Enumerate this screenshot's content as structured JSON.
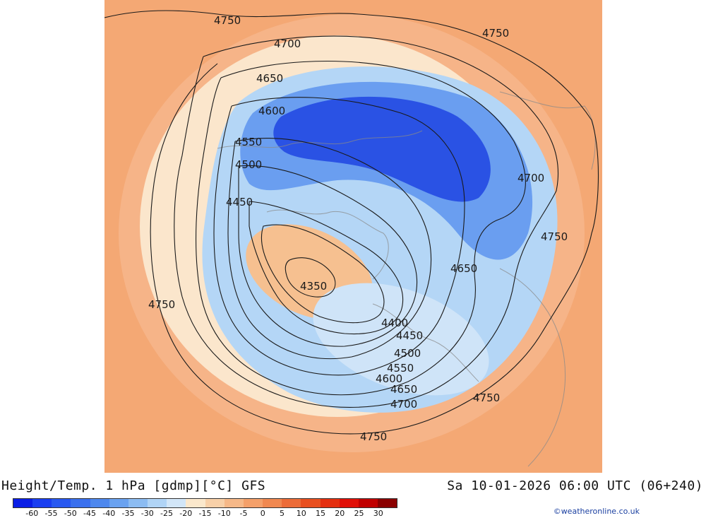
{
  "title": "Height/Temp. 1 hPa [gdmp][°C] GFS",
  "valid_time": "Sa 10-01-2026 06:00 UTC (06+240)",
  "credit": "©weatheronline.co.uk",
  "contour_labels": [
    {
      "text": "4750",
      "name": "contour-label-4750-nw"
    },
    {
      "text": "4750",
      "name": "contour-label-4750-ne"
    },
    {
      "text": "4700",
      "name": "contour-label-4700-n"
    },
    {
      "text": "4650",
      "name": "contour-label-4650-nw"
    },
    {
      "text": "4600",
      "name": "contour-label-4600-nw"
    },
    {
      "text": "4550",
      "name": "contour-label-4550-nw"
    },
    {
      "text": "4500",
      "name": "contour-label-4500-nw"
    },
    {
      "text": "4450",
      "name": "contour-label-4450-w"
    },
    {
      "text": "4350",
      "name": "contour-label-4350-center"
    },
    {
      "text": "4700",
      "name": "contour-label-4700-e"
    },
    {
      "text": "4750",
      "name": "contour-label-4750-e"
    },
    {
      "text": "4650",
      "name": "contour-label-4650-e"
    },
    {
      "text": "4750",
      "name": "contour-label-4750-w"
    },
    {
      "text": "4400",
      "name": "contour-label-4400-se"
    },
    {
      "text": "4450",
      "name": "contour-label-4450-se"
    },
    {
      "text": "4500",
      "name": "contour-label-4500-se"
    },
    {
      "text": "4550",
      "name": "contour-label-4550-se"
    },
    {
      "text": "4600",
      "name": "contour-label-4600-se"
    },
    {
      "text": "4650",
      "name": "contour-label-4650-se"
    },
    {
      "text": "4700",
      "name": "contour-label-4700-se"
    },
    {
      "text": "4750",
      "name": "contour-label-4750-s"
    },
    {
      "text": "4750",
      "name": "contour-label-4750-se-outer"
    }
  ],
  "colorbar": {
    "colors": [
      "#0a1ee6",
      "#1a3ef0",
      "#2858f0",
      "#3a70ee",
      "#4e88ee",
      "#6aa2f0",
      "#8cbcf2",
      "#b0d4f6",
      "#d2e6f8",
      "#fbe8cc",
      "#f8d0a8",
      "#f6b888",
      "#f4a06a",
      "#f08850",
      "#ec6c38",
      "#e85020",
      "#e43010",
      "#e01008",
      "#c00000",
      "#8a0000"
    ],
    "labels": [
      "-60",
      "-55",
      "-50",
      "-45",
      "-40",
      "-35",
      "-30",
      "-25",
      "-20",
      "-15",
      "-10",
      "-5",
      "0",
      "5",
      "10",
      "15",
      "20",
      "25",
      "30"
    ]
  }
}
